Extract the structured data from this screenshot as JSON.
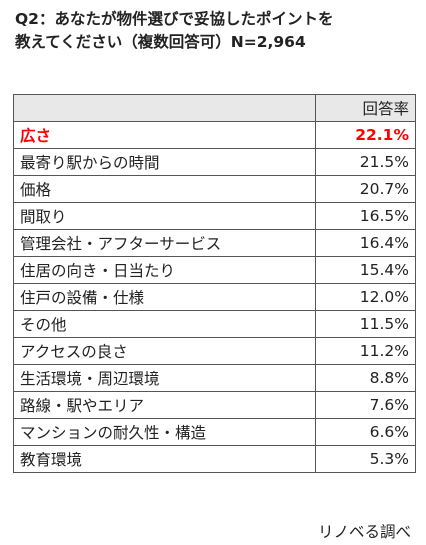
{
  "title_lines": [
    "Q2：あなたが物件選びで妥協したポイントを",
    "教えてください（複数回答可）N=2,964"
  ],
  "chart_data": {
    "type": "table",
    "columns": [
      "",
      "回答率"
    ],
    "rows": [
      {
        "label": "広さ",
        "value": "22.1%",
        "highlight": true
      },
      {
        "label": "最寄り駅からの時間",
        "value": "21.5%",
        "highlight": false
      },
      {
        "label": "価格",
        "value": "20.7%",
        "highlight": false
      },
      {
        "label": "間取り",
        "value": "16.5%",
        "highlight": false
      },
      {
        "label": "管理会社・アフターサービス",
        "value": "16.4%",
        "highlight": false
      },
      {
        "label": "住居の向き・日当たり",
        "value": "15.4%",
        "highlight": false
      },
      {
        "label": "住戸の設備・仕様",
        "value": "12.0%",
        "highlight": false
      },
      {
        "label": "その他",
        "value": "11.5%",
        "highlight": false
      },
      {
        "label": "アクセスの良さ",
        "value": "11.2%",
        "highlight": false
      },
      {
        "label": "生活環境・周辺環境",
        "value": "8.8%",
        "highlight": false
      },
      {
        "label": "路線・駅やエリア",
        "value": "7.6%",
        "highlight": false
      },
      {
        "label": "マンションの耐久性・構造",
        "value": "6.6%",
        "highlight": false
      },
      {
        "label": "教育環境",
        "value": "5.3%",
        "highlight": false
      }
    ],
    "highlight_color": "#ff0000"
  },
  "source": "リノベる調べ"
}
